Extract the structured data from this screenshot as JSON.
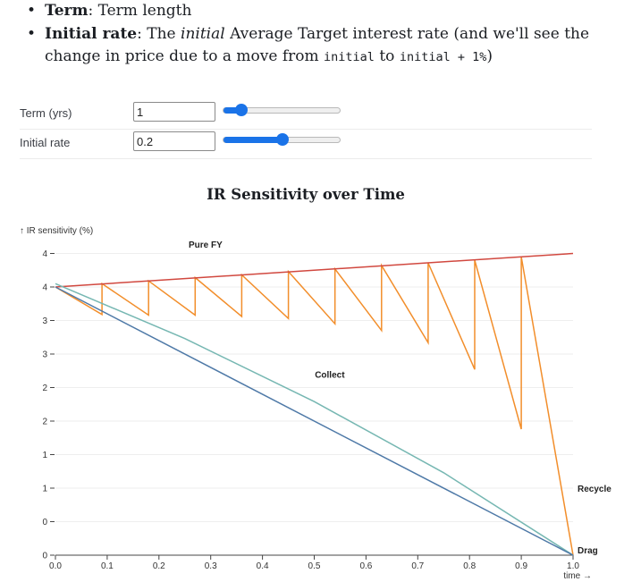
{
  "bullets": [
    {
      "term": "Term",
      "text": ": Term length"
    },
    {
      "term": "Initial rate",
      "pre": ": The ",
      "emph": "initial",
      "mid": " Average Target interest rate (and we'll see the change in price due to a move from ",
      "code1": "initial",
      "to": " to ",
      "code2": "initial + 1%",
      "post": ")"
    }
  ],
  "controls": {
    "term": {
      "label": "Term (yrs)",
      "value": "1",
      "slider_fraction": 0.15
    },
    "rate": {
      "label": "Initial rate",
      "value": "0.2",
      "slider_fraction": 0.5
    }
  },
  "chart_data": {
    "type": "line",
    "title": "IR Sensitivity over Time",
    "ylabel": "↑ IR sensitivity (%)",
    "xlabel": "time →",
    "xlim": [
      0,
      1
    ],
    "ylim": [
      0,
      4.6
    ],
    "x_ticks": [
      "0.0",
      "0.1",
      "0.2",
      "0.3",
      "0.4",
      "0.5",
      "0.6",
      "0.7",
      "0.8",
      "0.9",
      "1.0"
    ],
    "y_ticks": [
      {
        "v": 0,
        "label": "0"
      },
      {
        "v": 0.5,
        "label": "0"
      },
      {
        "v": 1,
        "label": "1"
      },
      {
        "v": 1.5,
        "label": "1"
      },
      {
        "v": 2,
        "label": "2"
      },
      {
        "v": 2.5,
        "label": "2"
      },
      {
        "v": 3,
        "label": "3"
      },
      {
        "v": 3.5,
        "label": "3"
      },
      {
        "v": 4,
        "label": "4"
      },
      {
        "v": 4.5,
        "label": "4"
      }
    ],
    "grid": true,
    "colors": {
      "pure_fy": "#d1483f",
      "recycle": "#f28e2b",
      "collect": "#76b7b2",
      "drag": "#4e79a7",
      "grid": "#eeeeee",
      "axis": "#444444"
    },
    "series": [
      {
        "name": "Pure FY",
        "color": "#d1483f",
        "points": [
          [
            0,
            4.0
          ],
          [
            1,
            4.5
          ]
        ]
      },
      {
        "name": "Recycle",
        "color": "#f28e2b",
        "points": [
          [
            0,
            4.0
          ],
          [
            0.09,
            3.59
          ],
          [
            0.09,
            4.05
          ],
          [
            0.18,
            3.58
          ],
          [
            0.18,
            4.09
          ],
          [
            0.27,
            3.58
          ],
          [
            0.27,
            4.14
          ],
          [
            0.36,
            3.56
          ],
          [
            0.36,
            4.18
          ],
          [
            0.45,
            3.53
          ],
          [
            0.45,
            4.23
          ],
          [
            0.54,
            3.45
          ],
          [
            0.54,
            4.27
          ],
          [
            0.63,
            3.35
          ],
          [
            0.63,
            4.32
          ],
          [
            0.72,
            3.17
          ],
          [
            0.72,
            4.36
          ],
          [
            0.81,
            2.77
          ],
          [
            0.81,
            4.4
          ],
          [
            0.9,
            1.88
          ],
          [
            0.9,
            4.45
          ],
          [
            1.0,
            0
          ]
        ]
      },
      {
        "name": "Collect",
        "color": "#76b7b2",
        "points": [
          [
            0,
            4.05
          ],
          [
            0.25,
            3.23
          ],
          [
            0.5,
            2.29
          ],
          [
            0.75,
            1.23
          ],
          [
            1.0,
            0
          ]
        ]
      },
      {
        "name": "Drag",
        "color": "#4e79a7",
        "points": [
          [
            0,
            4.0
          ],
          [
            1.0,
            0
          ]
        ]
      }
    ],
    "annotations": [
      {
        "text": "Pure FY",
        "x": 0.29,
        "y": 4.59
      },
      {
        "text": "Collect",
        "x": 0.53,
        "y": 2.65
      },
      {
        "text": "Recycle",
        "x": 1.0,
        "y": 0.95
      },
      {
        "text": "Drag",
        "x": 1.0,
        "y": 0.03
      }
    ]
  }
}
